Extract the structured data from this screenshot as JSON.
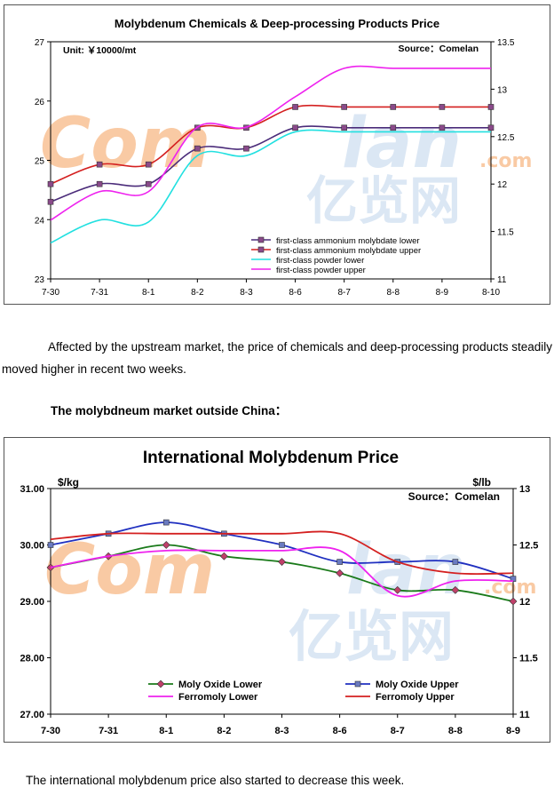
{
  "colors": {
    "chem_ammonium_lower": "#4B2C7A",
    "chem_ammonium_upper": "#D42020",
    "chem_powder_lower": "#22E0E0",
    "chem_powder_upper": "#EE22EE",
    "moly_oxide_lower": "#1A7A1A",
    "moly_oxide_upper": "#2030C0",
    "ferromoly_lower": "#EE22EE",
    "ferromoly_upper": "#D42020",
    "marker_purple": "#8A4A8A",
    "watermark_orange": "#F5A05A",
    "watermark_blue": "#BFD4EC"
  },
  "watermark": {
    "brand_latin": "Com",
    "brand_latin2": "lan",
    "brand_dotcom": ".com",
    "brand_cjk": "亿览网"
  },
  "chart_data": [
    {
      "type": "line",
      "title": "Molybdenum Chemicals & Deep-processing Products Price",
      "unit_label": "Unit: ￥10000/mt",
      "source_label": "Source：Comelan",
      "categories": [
        "7-30",
        "7-31",
        "8-1",
        "8-2",
        "8-3",
        "8-6",
        "8-7",
        "8-8",
        "8-9",
        "8-10"
      ],
      "ylim_left": [
        23,
        27
      ],
      "yticks_left": [
        "23",
        "24",
        "25",
        "26",
        "27"
      ],
      "ylim_right": [
        11,
        13.5
      ],
      "yticks_right": [
        "11",
        "11.5",
        "12",
        "12.5",
        "13",
        "13.5"
      ],
      "legend_position": "bottom-right",
      "series": [
        {
          "name": "first-class ammonium molybdate lower",
          "axis": "left",
          "marker": "square",
          "values": [
            24.3,
            24.6,
            24.6,
            25.2,
            25.2,
            25.55,
            25.55,
            25.55,
            25.55,
            25.55
          ]
        },
        {
          "name": "first-class ammonium molybdate upper",
          "axis": "left",
          "marker": "square",
          "values": [
            24.6,
            24.93,
            24.93,
            25.55,
            25.55,
            25.9,
            25.9,
            25.9,
            25.9,
            25.9
          ]
        },
        {
          "name": "first-class powder lower",
          "axis": "right",
          "marker": "none",
          "values": [
            11.38,
            11.62,
            11.6,
            12.3,
            12.3,
            12.55,
            12.55,
            12.55,
            12.55,
            12.55
          ]
        },
        {
          "name": "first-class powder upper",
          "axis": "right",
          "marker": "none",
          "values": [
            11.62,
            11.92,
            11.92,
            12.6,
            12.6,
            12.92,
            13.22,
            13.22,
            13.22,
            13.22
          ]
        }
      ]
    },
    {
      "type": "line",
      "title": "International Molybdenum Price",
      "left_unit": "$/kg",
      "right_unit": "$/lb",
      "source_label": "Source：Comelan",
      "categories": [
        "7-30",
        "7-31",
        "8-1",
        "8-2",
        "8-3",
        "8-6",
        "8-7",
        "8-8",
        "8-9"
      ],
      "ylim_left": [
        27,
        31
      ],
      "yticks_left": [
        "27.00",
        "28.00",
        "29.00",
        "30.00",
        "31.00"
      ],
      "ylim_right": [
        11,
        13
      ],
      "yticks_right": [
        "11",
        "11.5",
        "12",
        "12.5",
        "13"
      ],
      "legend_position": "bottom",
      "series": [
        {
          "name": "Moly Oxide Lower",
          "axis": "left",
          "marker": "diamond",
          "values": [
            29.6,
            29.8,
            30.0,
            29.8,
            29.7,
            29.5,
            29.2,
            29.2,
            29.0
          ]
        },
        {
          "name": "Moly Oxide Upper",
          "axis": "left",
          "marker": "square",
          "values": [
            30.0,
            30.2,
            30.4,
            30.2,
            30.0,
            29.7,
            29.7,
            29.7,
            29.4
          ]
        },
        {
          "name": "Ferromoly Lower",
          "axis": "right",
          "marker": "none",
          "values": [
            12.3,
            12.4,
            12.45,
            12.45,
            12.45,
            12.45,
            12.05,
            12.18,
            12.18
          ]
        },
        {
          "name": "Ferromoly Upper",
          "axis": "right",
          "marker": "none",
          "values": [
            12.55,
            12.6,
            12.6,
            12.6,
            12.6,
            12.6,
            12.35,
            12.25,
            12.25
          ]
        }
      ]
    }
  ],
  "text": {
    "para1": "Affected by the upstream market, the price of chemicals and deep-processing products steadily moved higher in recent two weeks.",
    "para2": "The molybdneum market outside China：",
    "para3": "The international molybdenum price also started to decrease this week."
  }
}
